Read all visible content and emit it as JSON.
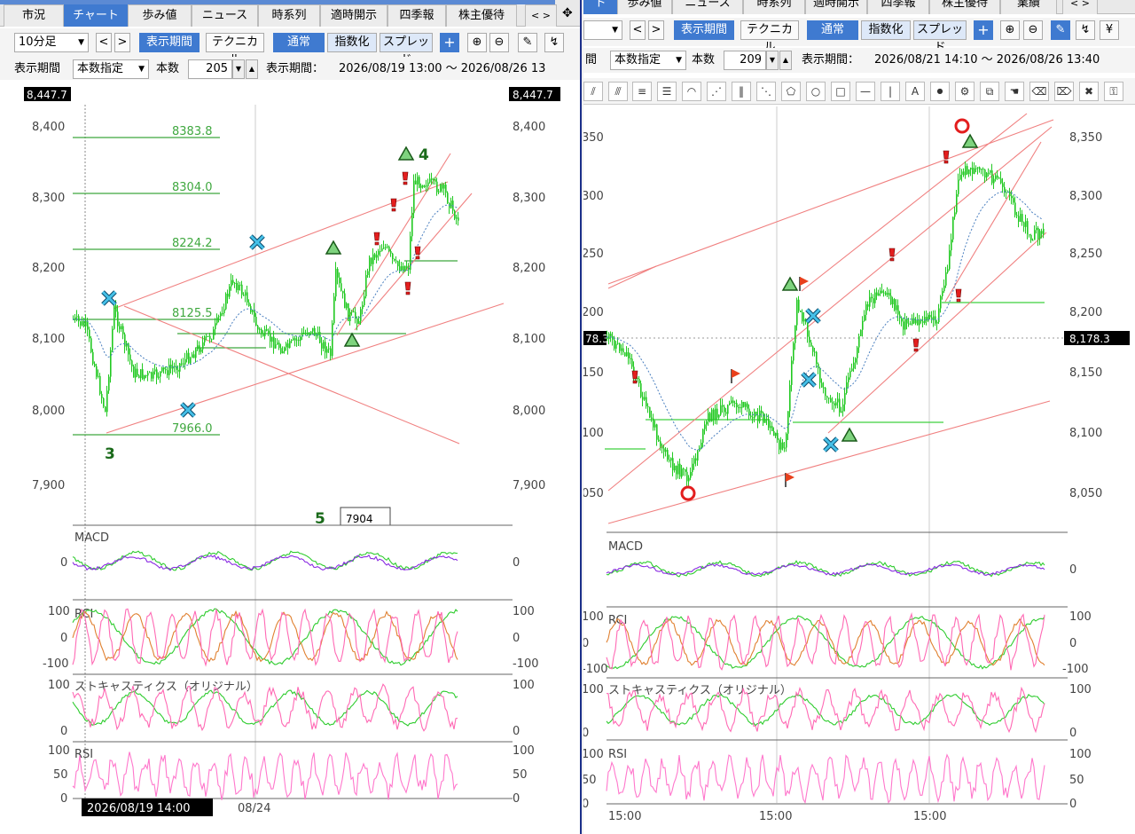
{
  "left": {
    "tabs": [
      "市況",
      "チャート",
      "歩み値",
      "ニュース",
      "時系列",
      "適時開示",
      "四季報",
      "株主優待"
    ],
    "active_tab": 1,
    "timeframe": "10分足",
    "display_period_btn": "表示期間",
    "technical_btn": "テクニカル",
    "mode_buttons": [
      "通常",
      "指数化",
      "スプレッド"
    ],
    "period_label": "表示期間",
    "period_mode": "本数指定",
    "count_label": "本数",
    "count_value": "205",
    "range_label": "表示期間：",
    "range_value": "2026/08/19 13:00 ～ 2026/08/26 13",
    "top_price_tag": "8,447.7",
    "price_ticks": [
      "8,400",
      "8,300",
      "8,200",
      "8,100",
      "8,000",
      "7,900"
    ],
    "fib_labels": [
      "8383.8",
      "8304.0",
      "8224.2",
      "8125.5",
      "7966.0"
    ],
    "wave_labels": [
      "3",
      "4",
      "5"
    ],
    "partial_box": "7904",
    "panels": {
      "macd": "MACD",
      "rci": "RCI",
      "stoch": "ストキャスティクス（オリジナル）",
      "rsi": "RSI"
    },
    "macd_ticks": [
      "0"
    ],
    "rci_ticks": [
      "100",
      "0",
      "-100"
    ],
    "stoch_ticks": [
      "100",
      "0"
    ],
    "rsi_ticks": [
      "100",
      "50",
      "0"
    ],
    "cursor_date": "2026/08/19 14:00",
    "date_label": "08/24"
  },
  "right": {
    "tabs": [
      "ト",
      "歩み値",
      "ニュース",
      "時系列",
      "適時開示",
      "四季報",
      "株主優待",
      "業績"
    ],
    "active_tab": 0,
    "timeframe": "",
    "display_period_btn": "表示期間",
    "technical_btn": "テクニカル",
    "mode_buttons": [
      "通常",
      "指数化",
      "スプレッド"
    ],
    "period_label": "間",
    "period_mode": "本数指定",
    "count_label": "本数",
    "count_value": "209",
    "range_label": "表示期間：",
    "range_value": "2026/08/21 14:10 ～ 2026/08/26 13:40",
    "price_ticks": [
      "8,350",
      "8,300",
      "8,250",
      "8,200",
      "8,150",
      "8,100",
      "8,050"
    ],
    "left_ticks": [
      "350",
      "300",
      "250",
      "200",
      "150",
      "100",
      "050"
    ],
    "current_price": "8,178.3",
    "current_price_left": "78.3",
    "panels": {
      "macd": "MACD",
      "rci": "RCI",
      "stoch": "ストキャスティクス（オリジナル）",
      "rsi": "RSI"
    },
    "macd_ticks": [
      "0"
    ],
    "rci_ticks": [
      "100",
      "0",
      "-100"
    ],
    "stoch_ticks": [
      "100",
      "0"
    ],
    "rsi_ticks": [
      "100",
      "50",
      "0"
    ],
    "time_labels": [
      "15:00",
      "15:00",
      "15:00"
    ]
  },
  "colors": {
    "price_up": "#22c922",
    "line_red": "#f08080",
    "fib": "#3fa83f",
    "accent": "#3f7ad0",
    "macd": "#8a2be2",
    "rci_fast": "#ff69b4",
    "rci_mid": "#e08030",
    "rci_slow": "#2ecc2e",
    "rsi": "#ff77cc"
  }
}
